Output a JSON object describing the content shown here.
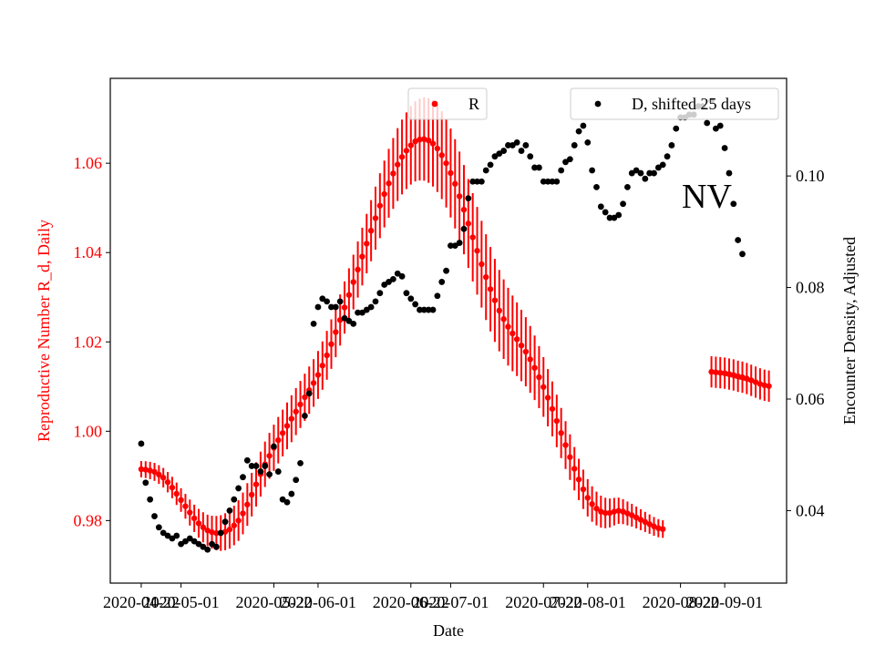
{
  "chart_data": {
    "type": "scatter",
    "xlabel": "Date",
    "ylabel_left": "Reproductive Number R_d, Daily",
    "ylabel_right": "Encounter Density, Adjusted",
    "annotation": "NV",
    "x_ticks": [
      "2020-04-22",
      "2020-05-01",
      "2020-05-22",
      "2020-06-01",
      "2020-06-22",
      "2020-07-01",
      "2020-07-22",
      "2020-08-01",
      "2020-08-22",
      "2020-09-01"
    ],
    "y_left_ticks": [
      "0.98",
      "1.00",
      "1.02",
      "1.04",
      "1.06"
    ],
    "y_right_ticks": [
      "0.04",
      "0.06",
      "0.08",
      "0.10"
    ],
    "ylim_left": [
      0.966,
      1.079
    ],
    "ylim_right": [
      0.027,
      0.1175
    ],
    "x_range": [
      "2020-04-15",
      "2020-09-15"
    ],
    "left_axis_color": "#ff0000",
    "legends": [
      {
        "label": "R",
        "color": "#ff0000",
        "position": "top-center"
      },
      {
        "label": "D, shifted 25 days",
        "color": "#000000",
        "position": "top-right"
      }
    ],
    "series": [
      {
        "name": "R",
        "color": "#ff0000",
        "axis": "left",
        "style": "markers with vertical error bars",
        "segments": [
          {
            "start": "2020-04-22",
            "step_days": 1,
            "values": [
              0.9915,
              0.9914,
              0.9912,
              0.9909,
              0.9903,
              0.9896,
              0.9886,
              0.9874,
              0.986,
              0.9846,
              0.9832,
              0.9818,
              0.9805,
              0.9794,
              0.9785,
              0.9778,
              0.9774,
              0.9772,
              0.9772,
              0.9775,
              0.978,
              0.9789,
              0.98,
              0.9816,
              0.9836,
              0.9858,
              0.9881,
              0.9904,
              0.9926,
              0.9945,
              0.9963,
              0.998,
              0.9996,
              1.0012,
              1.0028,
              1.0044,
              1.006,
              1.0076,
              1.0092,
              1.0108,
              1.0126,
              1.0147,
              1.017,
              1.0195,
              1.0222,
              1.0249,
              1.0277,
              1.0305,
              1.0334,
              1.0362,
              1.0391,
              1.042,
              1.0449,
              1.0477,
              1.0505,
              1.0531,
              1.0555,
              1.0577,
              1.0597,
              1.0614,
              1.0628,
              1.064,
              1.0649,
              1.0653,
              1.0654,
              1.0651,
              1.0644,
              1.0633,
              1.0618,
              1.06,
              1.0578,
              1.0554,
              1.0526,
              1.0496,
              1.0465,
              1.0434,
              1.0404,
              1.0374,
              1.0345,
              1.0318,
              1.0293,
              1.027,
              1.0251,
              1.0234,
              1.0219,
              1.0206,
              1.0192,
              1.0178,
              1.0161,
              1.0142,
              1.0121,
              1.0099,
              1.0075,
              1.005,
              1.0023,
              0.9996,
              0.9969,
              0.9942,
              0.9916,
              0.9892,
              0.987,
              0.9851,
              0.9837,
              0.9827,
              0.982,
              0.9817,
              0.9817,
              0.982,
              0.9822,
              0.982,
              0.9816,
              0.9812,
              0.9807,
              0.9802,
              0.9797,
              0.9792,
              0.9787,
              0.9783,
              0.9781
            ]
          },
          {
            "start": "2020-08-29",
            "step_days": 1,
            "values": [
              1.0133,
              1.0132,
              1.0131,
              1.013,
              1.0128,
              1.0126,
              1.0123,
              1.0121,
              1.0118,
              1.0114,
              1.011,
              1.0106,
              1.0103,
              1.0101
            ]
          }
        ]
      },
      {
        "name": "D, shifted 25 days",
        "color": "#000000",
        "axis": "right",
        "style": "markers",
        "start": "2020-04-22",
        "step_days": 1,
        "values": [
          0.052,
          0.045,
          0.042,
          0.039,
          0.037,
          0.036,
          0.0355,
          0.035,
          0.0355,
          0.034,
          0.0345,
          0.035,
          0.0345,
          0.034,
          0.0335,
          0.033,
          0.034,
          0.0335,
          0.036,
          0.038,
          0.04,
          0.042,
          0.044,
          0.046,
          0.049,
          0.048,
          0.048,
          0.047,
          0.048,
          0.0465,
          0.0515,
          0.047,
          0.042,
          0.0415,
          0.043,
          0.0455,
          0.0485,
          0.057,
          0.061,
          0.0735,
          0.0765,
          0.078,
          0.0775,
          0.0765,
          0.0765,
          0.0775,
          0.0745,
          0.074,
          0.0735,
          0.0755,
          0.0755,
          0.076,
          0.0765,
          0.0775,
          0.079,
          0.0805,
          0.081,
          0.0815,
          0.0825,
          0.082,
          0.079,
          0.078,
          0.077,
          0.076,
          0.076,
          0.076,
          0.076,
          0.0785,
          0.081,
          0.083,
          0.0875,
          0.0875,
          0.088,
          0.0905,
          0.096,
          0.099,
          0.099,
          0.099,
          0.101,
          0.102,
          0.1035,
          0.104,
          0.1045,
          0.1055,
          0.1055,
          0.106,
          0.1045,
          0.1055,
          0.1035,
          0.1015,
          0.1015,
          0.099,
          0.099,
          0.099,
          0.099,
          0.101,
          0.1025,
          0.103,
          0.1055,
          0.108,
          0.109,
          0.106,
          0.101,
          0.098,
          0.0945,
          0.0935,
          0.0925,
          0.0925,
          0.093,
          0.095,
          0.098,
          0.1005,
          0.101,
          0.1005,
          0.0995,
          0.1005,
          0.1005,
          0.1015,
          0.102,
          0.1035,
          0.1055,
          0.1085,
          0.1105,
          0.1105,
          0.111,
          0.111,
          0.1125,
          0.1125,
          0.1095,
          0.1135,
          0.1085,
          0.109,
          0.105,
          0.1005,
          0.095,
          0.0885,
          0.086
        ]
      }
    ]
  }
}
